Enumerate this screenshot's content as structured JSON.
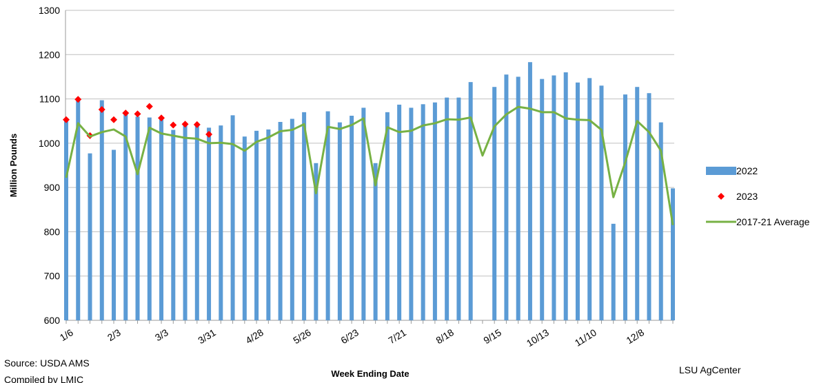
{
  "chart_data": {
    "type": "bar",
    "x_label": "Week Ending Date",
    "y_label": "Million Pounds",
    "source": "Source: USDA AMS",
    "compiled": "Compiled by LMIC",
    "credit": "LSU AgCenter",
    "categories": [
      "1/6",
      null,
      null,
      null,
      "2/3",
      null,
      null,
      null,
      "3/3",
      null,
      null,
      null,
      "3/31",
      null,
      null,
      null,
      "4/28",
      null,
      null,
      null,
      "5/26",
      null,
      null,
      null,
      "6/23",
      null,
      null,
      null,
      "7/21",
      null,
      null,
      null,
      "8/18",
      null,
      null,
      null,
      "9/15",
      null,
      null,
      null,
      "10/13",
      null,
      null,
      null,
      "11/10",
      null,
      null,
      null,
      "12/8",
      null,
      null,
      null
    ],
    "ylim": [
      600,
      1300
    ],
    "yticks": [
      600,
      700,
      800,
      900,
      1000,
      1100,
      1200,
      1300
    ],
    "grid": true,
    "legend": "right",
    "series": [
      {
        "name": "2022",
        "kind": "bar",
        "color": "#5b9bd5",
        "values": [
          1050,
          1100,
          977,
          1097,
          985,
          1065,
          1060,
          1058,
          1055,
          1030,
          1040,
          1043,
          1035,
          1040,
          1063,
          1015,
          1028,
          1031,
          1048,
          1055,
          1070,
          955,
          1072,
          1047,
          1062,
          1080,
          955,
          1070,
          1087,
          1080,
          1088,
          1092,
          1103,
          1103,
          1138,
          null,
          1127,
          1155,
          1150,
          1183,
          1145,
          1153,
          1160,
          1137,
          1147,
          1130,
          818,
          1110,
          1127,
          1113,
          1047,
          898
        ]
      },
      {
        "name": "2023",
        "kind": "scatter",
        "color": "#ff0000",
        "values": [
          1053,
          1099,
          1017,
          1076,
          1053,
          1068,
          1066,
          1083,
          1057,
          1041,
          1043,
          1042,
          1020,
          null,
          null,
          null,
          null,
          null,
          null,
          null,
          null,
          null,
          null,
          null,
          null,
          null,
          null,
          null,
          null,
          null,
          null,
          null,
          null,
          null,
          null,
          null,
          null,
          null,
          null,
          null,
          null,
          null,
          null,
          null,
          null,
          null,
          null,
          null,
          null,
          null,
          null,
          null
        ]
      },
      {
        "name": "2017-21 Average",
        "kind": "line",
        "color": "#77b144",
        "values": [
          922,
          1045,
          1015,
          1025,
          1031,
          1015,
          930,
          1035,
          1022,
          1017,
          1012,
          1010,
          1000,
          1001,
          998,
          983,
          1003,
          1013,
          1027,
          1030,
          1043,
          887,
          1037,
          1032,
          1041,
          1056,
          905,
          1036,
          1025,
          1028,
          1040,
          1045,
          1054,
          1053,
          1058,
          972,
          1038,
          1065,
          1082,
          1078,
          1070,
          1070,
          1056,
          1053,
          1052,
          1030,
          878,
          957,
          1050,
          1025,
          983,
          815
        ]
      }
    ]
  }
}
